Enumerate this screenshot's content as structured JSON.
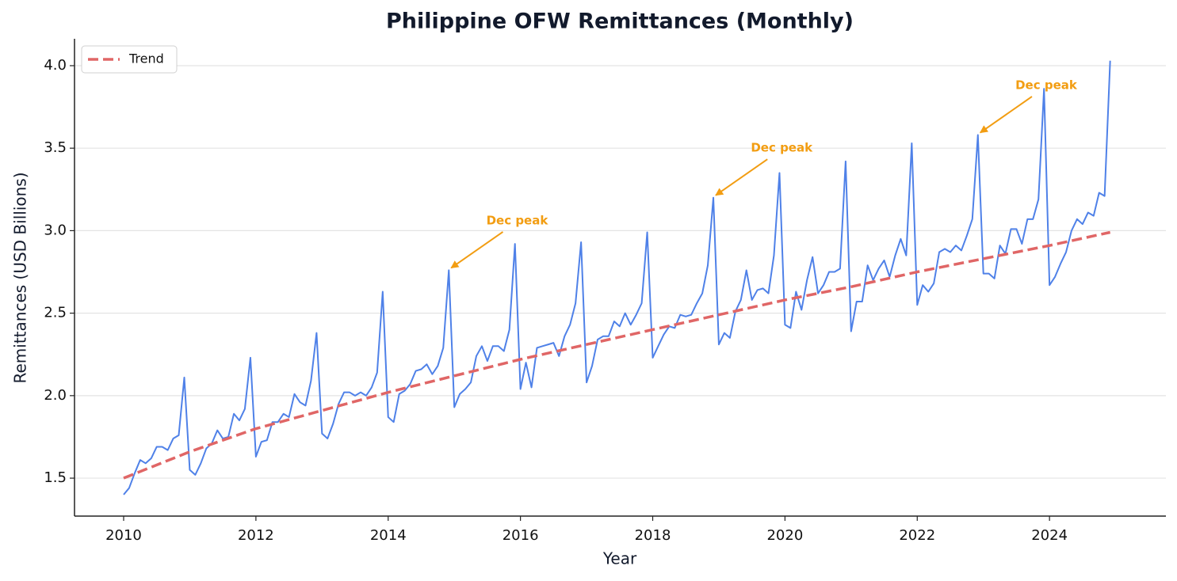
{
  "chart_data": {
    "type": "line",
    "title": "Philippine OFW Remittances (Monthly)",
    "x_label": "Year",
    "y_label": "Remittances (USD Billions)",
    "x": [
      2010.0,
      2010.083,
      2010.167,
      2010.25,
      2010.333,
      2010.417,
      2010.5,
      2010.583,
      2010.667,
      2010.75,
      2010.833,
      2010.917,
      2011.0,
      2011.083,
      2011.167,
      2011.25,
      2011.333,
      2011.417,
      2011.5,
      2011.583,
      2011.667,
      2011.75,
      2011.833,
      2011.917,
      2012.0,
      2012.083,
      2012.167,
      2012.25,
      2012.333,
      2012.417,
      2012.5,
      2012.583,
      2012.667,
      2012.75,
      2012.833,
      2012.917,
      2013.0,
      2013.083,
      2013.167,
      2013.25,
      2013.333,
      2013.417,
      2013.5,
      2013.583,
      2013.667,
      2013.75,
      2013.833,
      2013.917,
      2014.0,
      2014.083,
      2014.167,
      2014.25,
      2014.333,
      2014.417,
      2014.5,
      2014.583,
      2014.667,
      2014.75,
      2014.833,
      2014.917,
      2015.0,
      2015.083,
      2015.167,
      2015.25,
      2015.333,
      2015.417,
      2015.5,
      2015.583,
      2015.667,
      2015.75,
      2015.833,
      2015.917,
      2016.0,
      2016.083,
      2016.167,
      2016.25,
      2016.333,
      2016.417,
      2016.5,
      2016.583,
      2016.667,
      2016.75,
      2016.833,
      2016.917,
      2017.0,
      2017.083,
      2017.167,
      2017.25,
      2017.333,
      2017.417,
      2017.5,
      2017.583,
      2017.667,
      2017.75,
      2017.833,
      2017.917,
      2018.0,
      2018.083,
      2018.167,
      2018.25,
      2018.333,
      2018.417,
      2018.5,
      2018.583,
      2018.667,
      2018.75,
      2018.833,
      2018.917,
      2019.0,
      2019.083,
      2019.167,
      2019.25,
      2019.333,
      2019.417,
      2019.5,
      2019.583,
      2019.667,
      2019.75,
      2019.833,
      2019.917,
      2020.0,
      2020.083,
      2020.167,
      2020.25,
      2020.333,
      2020.417,
      2020.5,
      2020.583,
      2020.667,
      2020.75,
      2020.833,
      2020.917,
      2021.0,
      2021.083,
      2021.167,
      2021.25,
      2021.333,
      2021.417,
      2021.5,
      2021.583,
      2021.667,
      2021.75,
      2021.833,
      2021.917,
      2022.0,
      2022.083,
      2022.167,
      2022.25,
      2022.333,
      2022.417,
      2022.5,
      2022.583,
      2022.667,
      2022.75,
      2022.833,
      2022.917,
      2023.0,
      2023.083,
      2023.167,
      2023.25,
      2023.333,
      2023.417,
      2023.5,
      2023.583,
      2023.667,
      2023.75,
      2023.833,
      2023.917,
      2024.0,
      2024.083,
      2024.167,
      2024.25,
      2024.333,
      2024.417,
      2024.5,
      2024.583,
      2024.667,
      2024.75,
      2024.833,
      2024.917
    ],
    "series": [
      {
        "color": "#4f81e8",
        "dashed": false,
        "values": [
          1.4,
          1.44,
          1.53,
          1.61,
          1.59,
          1.62,
          1.69,
          1.69,
          1.67,
          1.74,
          1.76,
          2.11,
          1.55,
          1.52,
          1.59,
          1.68,
          1.71,
          1.79,
          1.74,
          1.75,
          1.89,
          1.85,
          1.92,
          2.23,
          1.63,
          1.72,
          1.73,
          1.84,
          1.84,
          1.89,
          1.87,
          2.01,
          1.96,
          1.94,
          2.09,
          2.38,
          1.77,
          1.74,
          1.83,
          1.95,
          2.02,
          2.02,
          2.0,
          2.02,
          2.0,
          2.05,
          2.14,
          2.63,
          1.87,
          1.84,
          2.01,
          2.03,
          2.07,
          2.15,
          2.16,
          2.19,
          2.13,
          2.18,
          2.29,
          2.76,
          1.93,
          2.01,
          2.04,
          2.08,
          2.24,
          2.3,
          2.21,
          2.3,
          2.3,
          2.27,
          2.4,
          2.92,
          2.04,
          2.2,
          2.05,
          2.29,
          2.3,
          2.31,
          2.32,
          2.24,
          2.36,
          2.43,
          2.56,
          2.93,
          2.08,
          2.18,
          2.34,
          2.36,
          2.36,
          2.45,
          2.42,
          2.5,
          2.43,
          2.49,
          2.56,
          2.99,
          2.23,
          2.3,
          2.37,
          2.42,
          2.41,
          2.49,
          2.48,
          2.49,
          2.56,
          2.62,
          2.79,
          3.2,
          2.31,
          2.38,
          2.35,
          2.51,
          2.58,
          2.76,
          2.58,
          2.64,
          2.65,
          2.62,
          2.85,
          3.35,
          2.43,
          2.41,
          2.63,
          2.52,
          2.7,
          2.84,
          2.62,
          2.67,
          2.75,
          2.75,
          2.77,
          3.42,
          2.39,
          2.57,
          2.57,
          2.79,
          2.7,
          2.77,
          2.82,
          2.72,
          2.85,
          2.95,
          2.85,
          3.53,
          2.55,
          2.67,
          2.63,
          2.68,
          2.87,
          2.89,
          2.87,
          2.91,
          2.88,
          2.97,
          3.07,
          3.58,
          2.74,
          2.74,
          2.71,
          2.91,
          2.86,
          3.01,
          3.01,
          2.92,
          3.07,
          3.07,
          3.19,
          3.86,
          2.67,
          2.72,
          2.8,
          2.87,
          3.0,
          3.07,
          3.04,
          3.11,
          3.09,
          3.23,
          3.21,
          4.03
        ]
      },
      {
        "name": "Trend",
        "color": "#e06666",
        "dashed": true,
        "x": [
          2010,
          2011,
          2012,
          2013,
          2014,
          2015,
          2016,
          2017,
          2018,
          2019,
          2020,
          2021,
          2022,
          2023,
          2024,
          2024.917
        ],
        "values": [
          1.5,
          1.66,
          1.8,
          1.91,
          2.02,
          2.12,
          2.22,
          2.31,
          2.4,
          2.49,
          2.58,
          2.66,
          2.75,
          2.83,
          2.91,
          2.99
        ]
      }
    ],
    "annotations": [
      {
        "text": "Dec peak",
        "x": 2014.917,
        "y": 2.76,
        "text_x": 2015.95,
        "text_y": 3.06,
        "color": "#f29d12"
      },
      {
        "text": "Dec peak",
        "x": 2018.917,
        "y": 3.2,
        "text_x": 2019.95,
        "text_y": 3.5,
        "color": "#f29d12"
      },
      {
        "text": "Dec peak",
        "x": 2022.917,
        "y": 3.58,
        "text_x": 2023.95,
        "text_y": 3.88,
        "color": "#f29d12"
      }
    ],
    "xlim": [
      2009.257,
      2025.76
    ],
    "ylim": [
      1.27,
      4.163
    ],
    "xticks": [
      2010,
      2012,
      2014,
      2016,
      2018,
      2020,
      2022,
      2024
    ],
    "yticks": [
      1.5,
      {
        "value": 2,
        "label": "2.0"
      },
      2.5,
      {
        "value": 3,
        "label": "3.0"
      },
      3.5,
      {
        "value": 4,
        "label": "4.0"
      }
    ],
    "grid": true,
    "legend": "upper left"
  }
}
